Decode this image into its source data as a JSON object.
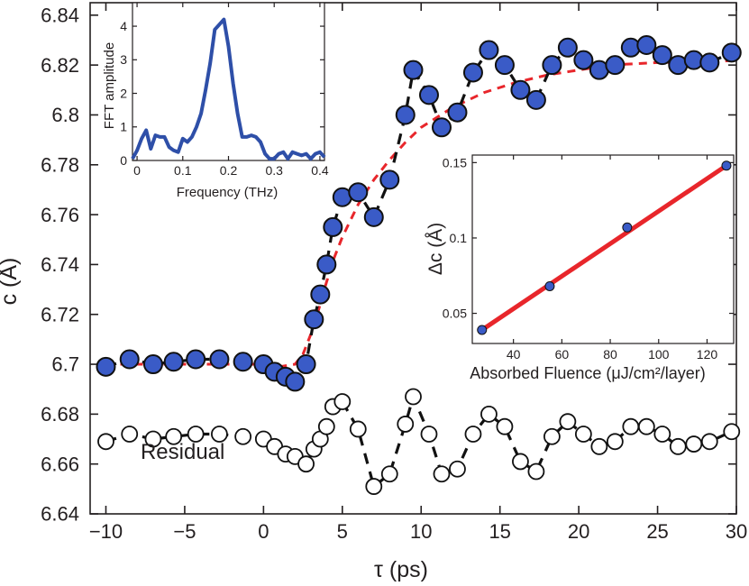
{
  "colors": {
    "data_fill": "#3a5bc7",
    "fit_line": "#e8262b",
    "dash_line": "#111111",
    "fft_line": "#2e4fa8",
    "axis": "#231f20"
  },
  "chart_data": [
    {
      "id": "main",
      "type": "scatter",
      "title": "",
      "xlabel": "τ (ps)",
      "ylabel": "c (Å)",
      "xlim": [
        -11,
        30
      ],
      "ylim": [
        6.64,
        6.845
      ],
      "xticks": [
        -10,
        -5,
        0,
        5,
        10,
        15,
        20,
        25,
        30
      ],
      "xtick_labels": [
        "−10",
        "−5",
        "0",
        "5",
        "10",
        "15",
        "20",
        "25",
        "30"
      ],
      "yticks": [
        6.64,
        6.66,
        6.68,
        6.7,
        6.72,
        6.74,
        6.76,
        6.78,
        6.8,
        6.82,
        6.84
      ],
      "ytick_labels": [
        "6.64",
        "6.66",
        "6.68",
        "6.7",
        "6.72",
        "6.74",
        "6.76",
        "6.78",
        "6.8",
        "6.82",
        "6.84"
      ],
      "grid": false,
      "series": [
        {
          "style": "filled-circles-dashed",
          "x": [
            -10,
            -8.5,
            -7,
            -5.7,
            -4.3,
            -2.8,
            -1.3,
            0,
            0.7,
            1.4,
            2.0,
            2.7,
            3.2,
            3.6,
            4.0,
            4.4,
            5.0,
            6.0,
            7.0,
            8.0,
            9.0,
            9.5,
            10.5,
            11.3,
            12.3,
            13.3,
            14.3,
            15.3,
            16.3,
            17.3,
            18.3,
            19.3,
            20.3,
            21.3,
            22.3,
            23.3,
            24.3,
            25.3,
            26.3,
            27.3,
            28.3,
            29.7
          ],
          "y": [
            6.699,
            6.702,
            6.7,
            6.701,
            6.702,
            6.702,
            6.701,
            6.7,
            6.697,
            6.695,
            6.693,
            6.7,
            6.718,
            6.728,
            6.74,
            6.755,
            6.767,
            6.769,
            6.759,
            6.774,
            6.8,
            6.818,
            6.808,
            6.795,
            6.801,
            6.817,
            6.826,
            6.82,
            6.81,
            6.806,
            6.82,
            6.827,
            6.822,
            6.818,
            6.82,
            6.827,
            6.828,
            6.824,
            6.82,
            6.822,
            6.821,
            6.825
          ]
        },
        {
          "style": "red-dashed-fit",
          "x": [
            -10,
            0,
            1,
            2,
            2.5,
            3,
            3.5,
            4,
            4.5,
            5,
            6,
            7,
            8,
            9,
            10,
            12,
            14,
            16,
            18,
            20,
            22,
            25,
            28,
            30
          ],
          "y": [
            6.7,
            6.7,
            6.699,
            6.7,
            6.704,
            6.712,
            6.722,
            6.733,
            6.743,
            6.751,
            6.764,
            6.774,
            6.782,
            6.789,
            6.795,
            6.803,
            6.809,
            6.813,
            6.816,
            6.818,
            6.82,
            6.821,
            6.821,
            6.822
          ]
        },
        {
          "name": "Residual",
          "style": "open-circles-dashed",
          "x": [
            -10,
            -8.5,
            -7,
            -5.7,
            -4.3,
            -2.8,
            -1.3,
            0,
            0.7,
            1.4,
            2.0,
            2.7,
            3.2,
            3.6,
            4.0,
            4.4,
            5.0,
            6.0,
            7.0,
            8.0,
            9.0,
            9.5,
            10.5,
            11.3,
            12.3,
            13.3,
            14.3,
            15.3,
            16.3,
            17.3,
            18.3,
            19.3,
            20.3,
            21.3,
            22.3,
            23.3,
            24.3,
            25.3,
            26.3,
            27.3,
            28.3,
            29.7
          ],
          "y": [
            6.669,
            6.672,
            6.67,
            6.671,
            6.672,
            6.672,
            6.671,
            6.67,
            6.667,
            6.664,
            6.663,
            6.66,
            6.666,
            6.67,
            6.675,
            6.683,
            6.685,
            6.674,
            6.651,
            6.656,
            6.676,
            6.687,
            6.672,
            6.656,
            6.658,
            6.672,
            6.68,
            6.675,
            6.661,
            6.657,
            6.671,
            6.677,
            6.672,
            6.667,
            6.669,
            6.675,
            6.675,
            6.672,
            6.667,
            6.668,
            6.669,
            6.673
          ]
        }
      ],
      "annotations": [
        {
          "text": "Residual",
          "x": -7.8,
          "y": 6.662
        }
      ]
    },
    {
      "id": "inset-fft",
      "type": "line",
      "xlabel": "Frequency (THz)",
      "ylabel": "FFT amplitude",
      "xlim": [
        -0.01,
        0.41
      ],
      "ylim": [
        0,
        4.7
      ],
      "xticks": [
        0,
        0.1,
        0.2,
        0.3,
        0.4
      ],
      "xtick_labels": [
        "0",
        "0.1",
        "0.2",
        "0.3",
        "0.4"
      ],
      "yticks": [
        0,
        1,
        2,
        3,
        4
      ],
      "ytick_labels": [
        "0",
        "1",
        "2",
        "3",
        "4"
      ],
      "series": [
        {
          "x": [
            -0.01,
            0,
            0.01,
            0.02,
            0.03,
            0.04,
            0.05,
            0.06,
            0.07,
            0.08,
            0.09,
            0.1,
            0.11,
            0.12,
            0.13,
            0.14,
            0.15,
            0.16,
            0.17,
            0.18,
            0.19,
            0.2,
            0.21,
            0.22,
            0.23,
            0.24,
            0.25,
            0.26,
            0.27,
            0.28,
            0.29,
            0.3,
            0.31,
            0.32,
            0.33,
            0.34,
            0.35,
            0.36,
            0.37,
            0.38,
            0.39,
            0.4,
            0.41
          ],
          "y": [
            0.05,
            0.3,
            0.65,
            0.9,
            0.35,
            0.75,
            0.7,
            0.7,
            0.4,
            0.3,
            0.25,
            0.65,
            0.55,
            0.7,
            1.0,
            1.4,
            2.1,
            2.9,
            3.9,
            4.05,
            4.2,
            3.4,
            2.3,
            1.4,
            0.7,
            0.7,
            0.75,
            0.7,
            0.55,
            0.2,
            0.05,
            0.05,
            0.2,
            0.25,
            0.05,
            0.25,
            0.2,
            0.15,
            0.2,
            0.05,
            0.2,
            0.25,
            0.1
          ]
        }
      ]
    },
    {
      "id": "inset-fluence",
      "type": "scatter",
      "xlabel": "Absorbed Fluence (μJ/cm²/layer)",
      "ylabel": "Δc (Å)",
      "xlim": [
        23,
        131
      ],
      "ylim": [
        0.03,
        0.155
      ],
      "xticks": [
        40,
        60,
        80,
        100,
        120
      ],
      "xtick_labels": [
        "40",
        "60",
        "80",
        "100",
        "120"
      ],
      "yticks": [
        0.05,
        0.1,
        0.15
      ],
      "ytick_labels": [
        "0.05",
        "0.1",
        "0.15"
      ],
      "series": [
        {
          "style": "points",
          "x": [
            27,
            55,
            87,
            128
          ],
          "y": [
            0.039,
            0.068,
            0.107,
            0.148
          ]
        },
        {
          "style": "fit",
          "x": [
            27,
            128
          ],
          "y": [
            0.039,
            0.148
          ]
        }
      ]
    }
  ]
}
